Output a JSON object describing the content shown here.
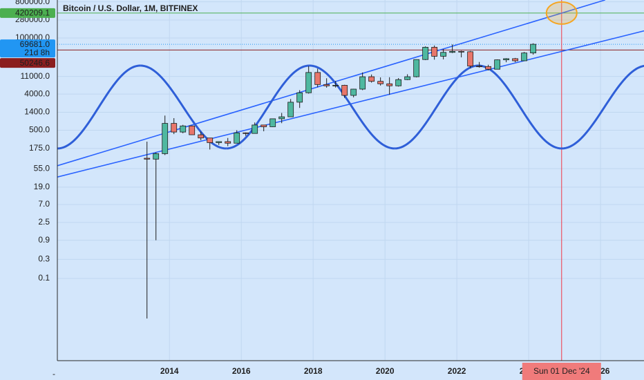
{
  "chart_data": {
    "type": "candlestick",
    "title": "Bitcoin / U.S. Dollar, 1M, BITFINEX",
    "x": [
      2013.25,
      2013.5,
      2013.75,
      2014.0,
      2014.25,
      2014.5,
      2014.75,
      2015.0,
      2015.25,
      2015.5,
      2015.75,
      2016.0,
      2016.25,
      2016.5,
      2016.75,
      2017.0,
      2017.25,
      2017.5,
      2017.75,
      2018.0,
      2018.25,
      2018.5,
      2018.75,
      2019.0,
      2019.25,
      2019.5,
      2019.75,
      2020.0,
      2020.25,
      2020.5,
      2020.75,
      2021.0,
      2021.25,
      2021.5,
      2021.75,
      2022.0,
      2022.25,
      2022.5,
      2022.75,
      2023.0,
      2023.25,
      2023.5,
      2023.75,
      2024.0
    ],
    "open": [
      100,
      95,
      130,
      740,
      450,
      640,
      385,
      320,
      245,
      260,
      237,
      430,
      415,
      675,
      610,
      965,
      1080,
      2500,
      4300,
      13800,
      6900,
      6400,
      6600,
      3700,
      5300,
      10800,
      8300,
      7200,
      6400,
      9150,
      10800,
      29000,
      58800,
      35000,
      43800,
      46300,
      45500,
      19900,
      19400,
      16600,
      28500,
      30500,
      27000,
      42300
    ],
    "high": [
      260,
      140,
      1160,
      1000,
      680,
      650,
      460,
      320,
      265,
      320,
      500,
      440,
      780,
      680,
      975,
      1350,
      3000,
      5000,
      19800,
      17200,
      9900,
      8500,
      6800,
      5400,
      13800,
      12300,
      10400,
      10500,
      10000,
      12450,
      29300,
      61800,
      65000,
      52900,
      69000,
      48200,
      47400,
      25200,
      21500,
      29200,
      31400,
      31800,
      44700,
      73700
    ],
    "low": [
      0.01,
      0.9,
      120,
      400,
      420,
      380,
      280,
      165,
      215,
      200,
      235,
      360,
      415,
      470,
      600,
      750,
      1080,
      1800,
      4100,
      5900,
      5750,
      5800,
      3200,
      3300,
      5000,
      7700,
      6500,
      3850,
      6150,
      8900,
      10400,
      28100,
      28800,
      29300,
      42000,
      32900,
      17600,
      18200,
      15500,
      16500,
      24800,
      24900,
      26900,
      38500
    ],
    "close": [
      95,
      130,
      740,
      450,
      640,
      385,
      320,
      245,
      260,
      237,
      430,
      415,
      675,
      610,
      965,
      1080,
      2500,
      4300,
      13800,
      6900,
      6400,
      6600,
      3700,
      5300,
      10800,
      8300,
      7200,
      6400,
      9150,
      10800,
      29000,
      58800,
      35000,
      43800,
      46300,
      45500,
      19900,
      19400,
      16600,
      28500,
      30500,
      27000,
      42300,
      69681
    ],
    "up_color": "#4fb8a0",
    "down_color": "#e8766b",
    "xlim": [
      2010.88,
      2027.21
    ],
    "xticks": [
      2014,
      2016,
      2018,
      2020,
      2022,
      2024,
      2026
    ],
    "ylim": [
      0.00089,
      887000
    ],
    "log_scale": true,
    "grid": true,
    "yticks": [
      {
        "value": 800000,
        "label": "800000.0"
      },
      {
        "value": 280000,
        "label": "280000.0"
      },
      {
        "value": 100000,
        "label": "100000.0"
      },
      {
        "value": 11000,
        "label": "11000.0"
      },
      {
        "value": 4000,
        "label": "4000.0"
      },
      {
        "value": 1400,
        "label": "1400.0"
      },
      {
        "value": 500,
        "label": "500.0"
      },
      {
        "value": 175,
        "label": "175.0"
      },
      {
        "value": 55,
        "label": "55.0"
      },
      {
        "value": 19,
        "label": "19.0"
      },
      {
        "value": 7,
        "label": "7.0"
      },
      {
        "value": 2.5,
        "label": "2.5"
      },
      {
        "value": 0.9,
        "label": "0.9"
      },
      {
        "value": 0.3,
        "label": "0.3"
      },
      {
        "value": 0.1,
        "label": "0.1"
      }
    ],
    "cycle": {
      "color": "#2f5fd8",
      "x": [
        2010.88,
        2013.19,
        2015.58,
        2017.9,
        2020.27,
        2022.6,
        2024.92,
        2027.3
      ],
      "values": [
        175,
        20500,
        175,
        20500,
        175,
        20500,
        175,
        20500
      ]
    },
    "trend_lines": [
      {
        "color": "#2962ff",
        "x": [
          2010.88,
          2026.13
        ],
        "values": [
          65,
          890000
        ]
      },
      {
        "color": "#2962ff",
        "x": [
          2010.88,
          2027.27
        ],
        "values": [
          34,
          155000
        ]
      }
    ],
    "price_lines": [
      {
        "value": 420209.1,
        "label": "420209.1",
        "color": "#4caf50"
      },
      {
        "value": 69681,
        "label": "69681.0",
        "countdown": "21d 8h",
        "color": "#2196f3"
      },
      {
        "value": 50246.6,
        "label": "50246.6",
        "color": "#8b1e1e"
      }
    ],
    "crosshair": {
      "x": 2024.917,
      "label": "Sun 01 Dec '24",
      "color": "#f23645"
    },
    "highlight_color": "#f5a623",
    "corner_label": "-"
  }
}
